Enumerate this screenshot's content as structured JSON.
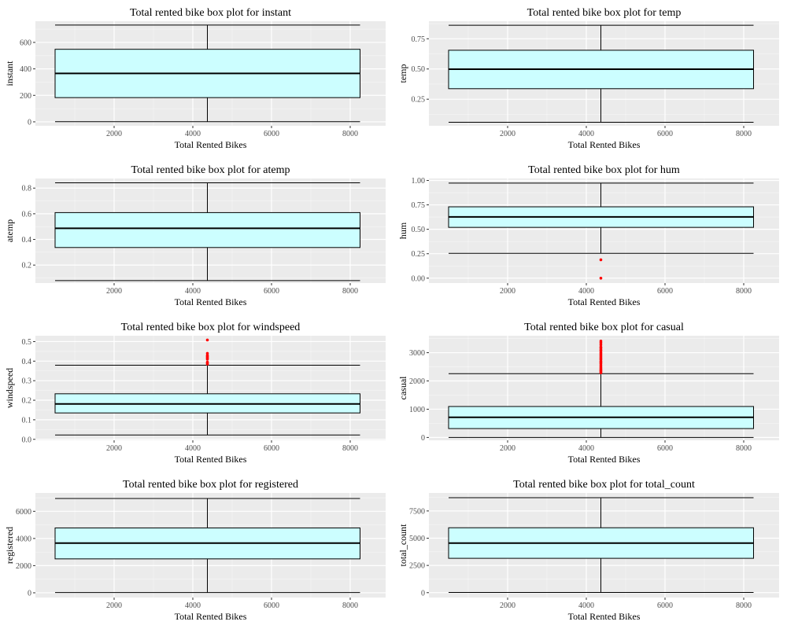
{
  "colors": {
    "panel_bg": "#ebebeb",
    "grid_major": "#ffffff",
    "box_fill": "#ccfeff",
    "box_stroke": "#000000",
    "outlier": "#ff0000",
    "tick_text": "#4d4d4d"
  },
  "chart_data": [
    {
      "type": "boxplot",
      "title": "Total rented bike box plot for instant",
      "xlabel": "Total Rented Bikes",
      "ylabel": "instant",
      "xlim": [
        0,
        8900
      ],
      "ylim": [
        -30,
        760
      ],
      "xticks": [
        2000,
        4000,
        6000,
        8000
      ],
      "yticks": [
        0,
        200,
        400,
        600
      ],
      "ytick_labels": [
        "0",
        "200",
        "400",
        "600"
      ],
      "box": {
        "x_min": 500,
        "x_max": 8250,
        "x_center": 4370,
        "q1": 183,
        "median": 366,
        "q3": 548,
        "whisker_low": 1,
        "whisker_high": 731
      },
      "outliers": []
    },
    {
      "type": "boxplot",
      "title": "Total rented bike box plot for temp",
      "xlabel": "Total Rented Bikes",
      "ylabel": "temp",
      "xlim": [
        0,
        8900
      ],
      "ylim": [
        0.03,
        0.895
      ],
      "xticks": [
        2000,
        4000,
        6000,
        8000
      ],
      "yticks": [
        0.25,
        0.5,
        0.75
      ],
      "ytick_labels": [
        "0.25",
        "0.50",
        "0.75"
      ],
      "box": {
        "x_min": 500,
        "x_max": 8250,
        "x_center": 4370,
        "q1": 0.337,
        "median": 0.498,
        "q3": 0.655,
        "whisker_low": 0.059,
        "whisker_high": 0.862
      },
      "outliers": []
    },
    {
      "type": "boxplot",
      "title": "Total rented bike box plot for atemp",
      "xlabel": "Total Rented Bikes",
      "ylabel": "atemp",
      "xlim": [
        0,
        8900
      ],
      "ylim": [
        0.06,
        0.875
      ],
      "xticks": [
        2000,
        4000,
        6000,
        8000
      ],
      "yticks": [
        0.2,
        0.4,
        0.6,
        0.8
      ],
      "ytick_labels": [
        "0.2",
        "0.4",
        "0.6",
        "0.8"
      ],
      "box": {
        "x_min": 500,
        "x_max": 8250,
        "x_center": 4370,
        "q1": 0.337,
        "median": 0.487,
        "q3": 0.609,
        "whisker_low": 0.079,
        "whisker_high": 0.841
      },
      "outliers": []
    },
    {
      "type": "boxplot",
      "title": "Total rented bike box plot for hum",
      "xlabel": "Total Rented Bikes",
      "ylabel": "hum",
      "xlim": [
        0,
        8900
      ],
      "ylim": [
        -0.05,
        1.02
      ],
      "xticks": [
        2000,
        4000,
        6000,
        8000
      ],
      "yticks": [
        0,
        0.25,
        0.5,
        0.75,
        1.0
      ],
      "ytick_labels": [
        "0.00",
        "0.25",
        "0.50",
        "0.75",
        "1.00"
      ],
      "box": {
        "x_min": 500,
        "x_max": 8250,
        "x_center": 4370,
        "q1": 0.52,
        "median": 0.627,
        "q3": 0.73,
        "whisker_low": 0.254,
        "whisker_high": 0.9725
      },
      "outliers": [
        0.0,
        0.188
      ]
    },
    {
      "type": "boxplot",
      "title": "Total rented bike box plot for windspeed",
      "xlabel": "Total Rented Bikes",
      "ylabel": "windspeed",
      "xlim": [
        0,
        8900
      ],
      "ylim": [
        -0.005,
        0.53
      ],
      "xticks": [
        2000,
        4000,
        6000,
        8000
      ],
      "yticks": [
        0,
        0.1,
        0.2,
        0.3,
        0.4,
        0.5
      ],
      "ytick_labels": [
        "0.0",
        "0.1",
        "0.2",
        "0.3",
        "0.4",
        "0.5"
      ],
      "box": {
        "x_min": 500,
        "x_max": 8250,
        "x_center": 4370,
        "q1": 0.135,
        "median": 0.181,
        "q3": 0.233,
        "whisker_low": 0.022,
        "whisker_high": 0.379
      },
      "outliers": [
        0.385,
        0.39,
        0.395,
        0.41,
        0.415,
        0.42,
        0.425,
        0.43,
        0.44,
        0.508
      ]
    },
    {
      "type": "boxplot",
      "title": "Total rented bike box plot for casual",
      "xlabel": "Total Rented Bikes",
      "ylabel": "casual",
      "xlim": [
        0,
        8900
      ],
      "ylim": [
        -100,
        3600
      ],
      "xticks": [
        2000,
        4000,
        6000,
        8000
      ],
      "yticks": [
        0,
        1000,
        2000,
        3000
      ],
      "ytick_labels": [
        "0",
        "1000",
        "2000",
        "3000"
      ],
      "box": {
        "x_min": 500,
        "x_max": 8250,
        "x_center": 4370,
        "q1": 315,
        "median": 713,
        "q3": 1096,
        "whisker_low": 2,
        "whisker_high": 2258
      },
      "outliers": [
        2290,
        2330,
        2370,
        2400,
        2450,
        2500,
        2560,
        2620,
        2660,
        2700,
        2760,
        2800,
        2850,
        2900,
        2950,
        3000,
        3060,
        3100,
        3160,
        3200,
        3280,
        3350,
        3410
      ]
    },
    {
      "type": "boxplot",
      "title": "Total rented bike box plot for registered",
      "xlabel": "Total Rented Bikes",
      "ylabel": "registered",
      "xlim": [
        0,
        8900
      ],
      "ylim": [
        -350,
        7350
      ],
      "xticks": [
        2000,
        4000,
        6000,
        8000
      ],
      "yticks": [
        0,
        2000,
        4000,
        6000
      ],
      "ytick_labels": [
        "0",
        "2000",
        "4000",
        "6000"
      ],
      "box": {
        "x_min": 500,
        "x_max": 8250,
        "x_center": 4370,
        "q1": 2497,
        "median": 3662,
        "q3": 4776,
        "whisker_low": 20,
        "whisker_high": 6946
      },
      "outliers": []
    },
    {
      "type": "boxplot",
      "title": "Total rented bike box plot for total_count",
      "xlabel": "Total Rented Bikes",
      "ylabel": "total_count",
      "xlim": [
        0,
        8900
      ],
      "ylim": [
        -450,
        9150
      ],
      "xticks": [
        2000,
        4000,
        6000,
        8000
      ],
      "yticks": [
        0,
        2500,
        5000,
        7500
      ],
      "ytick_labels": [
        "0",
        "2500",
        "5000",
        "7500"
      ],
      "box": {
        "x_min": 500,
        "x_max": 8250,
        "x_center": 4370,
        "q1": 3152,
        "median": 4548,
        "q3": 5956,
        "whisker_low": 22,
        "whisker_high": 8714
      },
      "outliers": []
    }
  ]
}
